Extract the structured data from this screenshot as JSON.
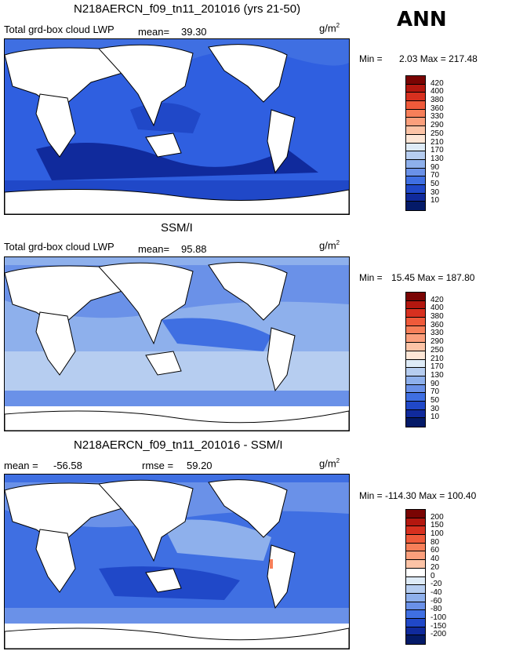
{
  "chart_data": [
    {
      "type": "heatmap",
      "title": "N218AERCN_f09_tn11_201016 (yrs 21-50)",
      "left_label": "Total grd-box cloud LWP",
      "mean_label": "mean=",
      "mean_value": "39.30",
      "units": "g/m",
      "units_exp": "2",
      "min_label": "Min =",
      "min": "2.03",
      "max_label": "Max =",
      "max": "217.48",
      "colorbar": {
        "levels": [
          "420",
          "400",
          "380",
          "360",
          "330",
          "290",
          "250",
          "210",
          "170",
          "130",
          "90",
          "70",
          "50",
          "30",
          "10"
        ],
        "colors": [
          "#7a0403",
          "#b3170f",
          "#d7301f",
          "#ef5a3a",
          "#f77f59",
          "#fb9f7c",
          "#fcc3a6",
          "#fde6d6",
          "#deebf7",
          "#b6cdf0",
          "#8eb0ec",
          "#6a91e8",
          "#3f6fe2",
          "#2048c8",
          "#102a9c",
          "#041a68"
        ]
      }
    },
    {
      "type": "heatmap",
      "title": "SSM/I",
      "left_label": "Total grd-box cloud LWP",
      "mean_label": "mean=",
      "mean_value": "95.88",
      "units": "g/m",
      "units_exp": "2",
      "min_label": "Min =",
      "min": "15.45",
      "max_label": "Max =",
      "max": "187.80",
      "colorbar": {
        "levels": [
          "420",
          "400",
          "380",
          "360",
          "330",
          "290",
          "250",
          "210",
          "170",
          "130",
          "90",
          "70",
          "50",
          "30",
          "10"
        ],
        "colors": [
          "#7a0403",
          "#b3170f",
          "#d7301f",
          "#ef5a3a",
          "#f77f59",
          "#fb9f7c",
          "#fcc3a6",
          "#fde6d6",
          "#deebf7",
          "#b6cdf0",
          "#8eb0ec",
          "#6a91e8",
          "#3f6fe2",
          "#2048c8",
          "#102a9c",
          "#041a68"
        ]
      }
    },
    {
      "type": "heatmap",
      "title": "N218AERCN_f09_tn11_201016 - SSM/I",
      "mean_label": "mean =",
      "mean_value": "-56.58",
      "rmse_label": "rmse =",
      "rmse_value": "59.20",
      "units": "g/m",
      "units_exp": "2",
      "min_label": "Min =",
      "min": "-114.30",
      "max_label": "Max =",
      "max": "100.40",
      "colorbar": {
        "levels": [
          "200",
          "150",
          "100",
          "80",
          "60",
          "40",
          "20",
          "0",
          "-20",
          "-40",
          "-60",
          "-80",
          "-100",
          "-150",
          "-200"
        ],
        "colors": [
          "#7a0403",
          "#b3170f",
          "#d7301f",
          "#ef5a3a",
          "#f77f59",
          "#fb9f7c",
          "#fcc3a6",
          "#ffffff",
          "#deebf7",
          "#b6cdf0",
          "#8eb0ec",
          "#6a91e8",
          "#3f6fe2",
          "#2048c8",
          "#102a9c",
          "#041a68"
        ]
      }
    }
  ],
  "season": "ANN"
}
